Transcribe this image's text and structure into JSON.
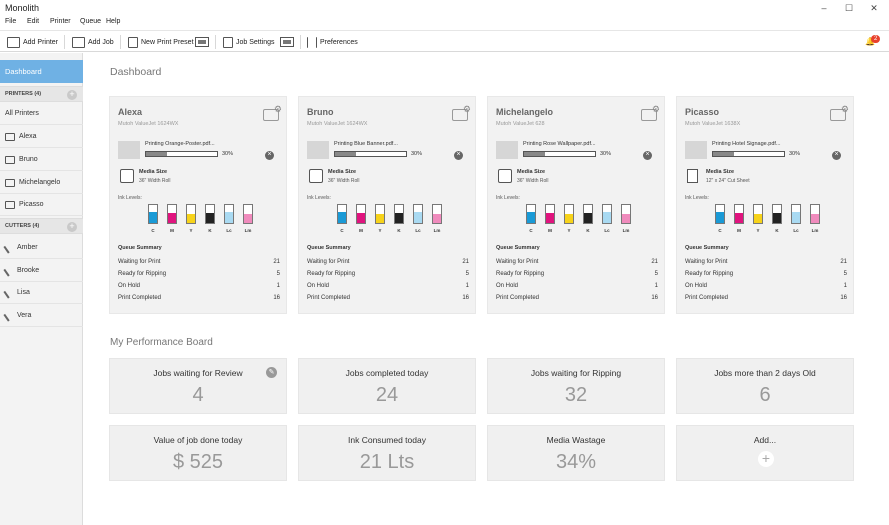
{
  "window": {
    "title": "Monolith",
    "minimize": "–",
    "maximize": "☐",
    "close": "✕"
  },
  "menu": [
    "File",
    "Edit",
    "Printer",
    "Queue",
    "Help"
  ],
  "toolbar": {
    "add_printer": "Add Printer",
    "add_job": "Add Job",
    "new_print_preset": "New Print Preset",
    "job_settings": "Job Settings",
    "preferences": "Preferences",
    "notifications": "2"
  },
  "sidebar": {
    "dashboard": "Dashboard",
    "printers_header": "PRINTERS (4)",
    "all_printers": "All Printers",
    "printers": [
      "Alexa",
      "Bruno",
      "Michelangelo",
      "Picasso"
    ],
    "cutters_header": "CUTTERS (4)",
    "cutters": [
      "Amber",
      "Brooke",
      "Lisa",
      "Vera"
    ]
  },
  "main": {
    "dashboard_title": "Dashboard",
    "performance_title": "My Performance Board"
  },
  "printer_cards": [
    {
      "name": "Alexa",
      "model": "Mutoh ValueJet 1624WX",
      "printing": "Printing Orange-Poster.pdf...",
      "progress": 30,
      "progress_label": "30%",
      "media_label": "Media Size",
      "media_value": "36\" Width Roll",
      "media_type": "roll",
      "ink_label": "Ink Levels:",
      "ink_levels": [
        0.6,
        0.55,
        0.5,
        0.55,
        0.6,
        0.5
      ],
      "queue_title": "Queue Summary",
      "queue": [
        [
          "Waiting for Print",
          "21"
        ],
        [
          "Ready for Ripping",
          "5"
        ],
        [
          "On Hold",
          "1"
        ],
        [
          "Print Completed",
          "16"
        ]
      ]
    },
    {
      "name": "Bruno",
      "model": "Mutoh ValueJet 1624WX",
      "printing": "Printing Blue Banner.pdf...",
      "progress": 30,
      "progress_label": "30%",
      "media_label": "Media Size",
      "media_value": "36\" Width Roll",
      "media_type": "roll",
      "ink_label": "Ink Levels:",
      "ink_levels": [
        0.6,
        0.55,
        0.5,
        0.55,
        0.6,
        0.5
      ],
      "queue_title": "Queue Summary",
      "queue": [
        [
          "Waiting for Print",
          "21"
        ],
        [
          "Ready for Ripping",
          "5"
        ],
        [
          "On Hold",
          "1"
        ],
        [
          "Print Completed",
          "16"
        ]
      ]
    },
    {
      "name": "Michelangelo",
      "model": "Mutoh ValueJet 628",
      "printing": "Printing Rose Wallpaper.pdf...",
      "progress": 30,
      "progress_label": "30%",
      "media_label": "Media Size",
      "media_value": "36\" Width Roll",
      "media_type": "roll",
      "ink_label": "Ink Levels:",
      "ink_levels": [
        0.6,
        0.55,
        0.5,
        0.55,
        0.6,
        0.5
      ],
      "queue_title": "Queue Summary",
      "queue": [
        [
          "Waiting for Print",
          "21"
        ],
        [
          "Ready for Ripping",
          "5"
        ],
        [
          "On Hold",
          "1"
        ],
        [
          "Print Completed",
          "16"
        ]
      ]
    },
    {
      "name": "Picasso",
      "model": "Mutoh ValueJet 1638X",
      "printing": "Printing Hotel Signage.pdf...",
      "progress": 30,
      "progress_label": "30%",
      "media_label": "Media Size",
      "media_value": "12\" x 24\" Cut Sheet",
      "media_type": "sheet",
      "ink_label": "Ink Levels:",
      "ink_levels": [
        0.6,
        0.55,
        0.5,
        0.55,
        0.6,
        0.5
      ],
      "queue_title": "Queue Summary",
      "queue": [
        [
          "Waiting for Print",
          "21"
        ],
        [
          "Ready for Ripping",
          "5"
        ],
        [
          "On Hold",
          "1"
        ],
        [
          "Print Completed",
          "16"
        ]
      ]
    }
  ],
  "ink_channels": [
    {
      "label": "C",
      "color": "#1a9ad6"
    },
    {
      "label": "M",
      "color": "#e0147e"
    },
    {
      "label": "Y",
      "color": "#f7d31a"
    },
    {
      "label": "K",
      "color": "#222222"
    },
    {
      "label": "Lc",
      "color": "#a9daf2"
    },
    {
      "label": "Lm",
      "color": "#f08bbd"
    }
  ],
  "performance": [
    {
      "title": "Jobs waiting for Review",
      "value": "4",
      "edit": "✎"
    },
    {
      "title": "Jobs completed today",
      "value": "24"
    },
    {
      "title": "Jobs waiting for Ripping",
      "value": "32"
    },
    {
      "title": "Jobs more than 2 days Old",
      "value": "6"
    },
    {
      "title": "Value of job done today",
      "value": "$ 525"
    },
    {
      "title": "Ink Consumed today",
      "value": "21 Lts"
    },
    {
      "title": "Media Wastage",
      "value": "34%"
    },
    {
      "title": "Add...",
      "value": "",
      "plus": "+"
    }
  ]
}
